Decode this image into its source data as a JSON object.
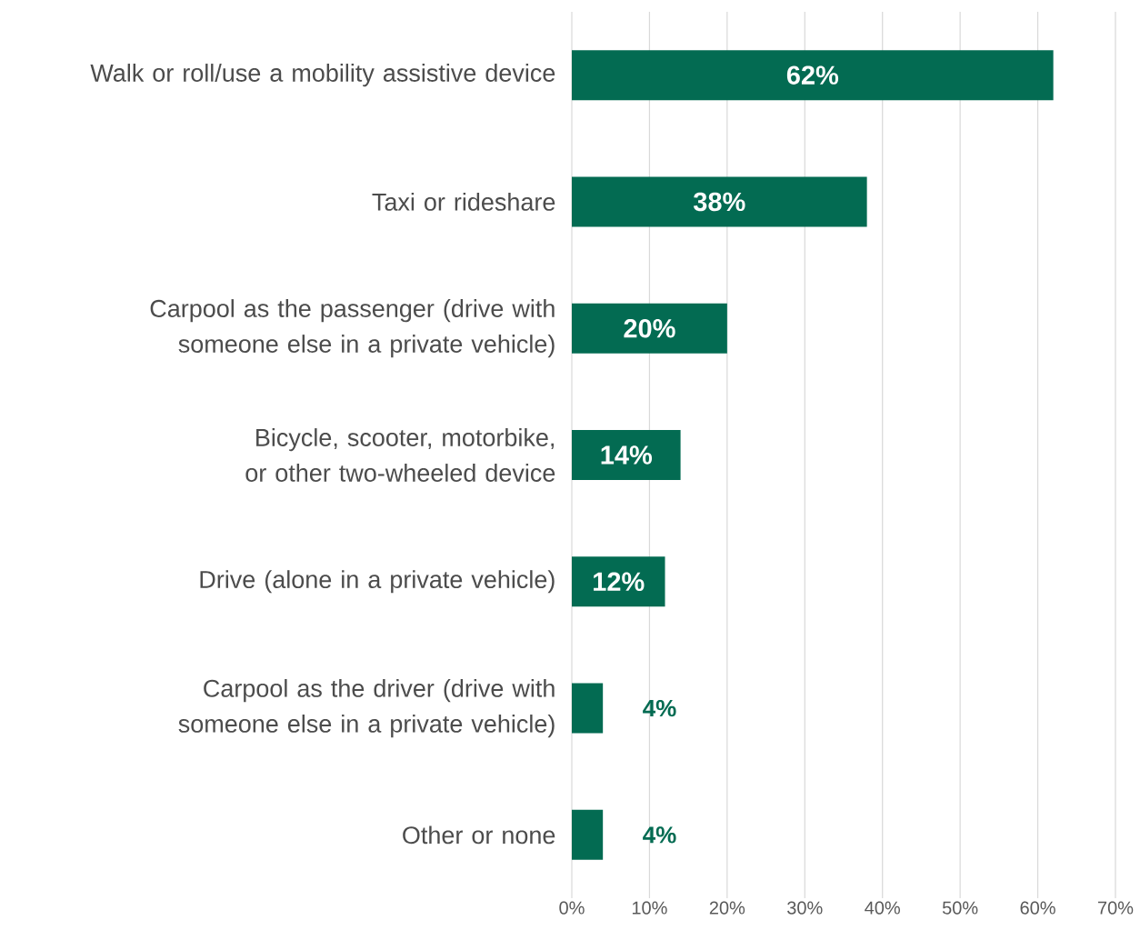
{
  "chart_data": {
    "type": "bar",
    "orientation": "horizontal",
    "categories": [
      "Walk or roll/use a mobility assistive device",
      "Taxi or rideshare",
      "Carpool as the passenger (drive with someone else in a private vehicle)",
      "Bicycle, scooter, motorbike, or other two-wheeled device",
      "Drive (alone in a private vehicle)",
      "Carpool as the driver (drive with someone else in a private vehicle)",
      "Other or none"
    ],
    "values": [
      62,
      38,
      20,
      14,
      12,
      4,
      4
    ],
    "color": "#036b52",
    "value_labels": [
      "62%",
      "38%",
      "20%",
      "14%",
      "12%",
      "4%",
      "4%"
    ],
    "xlim": [
      0,
      70
    ],
    "xticks": [
      {
        "value": 0,
        "label": "0%"
      },
      {
        "value": 10,
        "label": "10%"
      },
      {
        "value": 20,
        "label": "20%"
      },
      {
        "value": 30,
        "label": "30%"
      },
      {
        "value": 40,
        "label": "40%"
      },
      {
        "value": 50,
        "label": "50%"
      },
      {
        "value": 60,
        "label": "60%"
      },
      {
        "value": 70,
        "label": "70%"
      }
    ],
    "grid": "x"
  }
}
